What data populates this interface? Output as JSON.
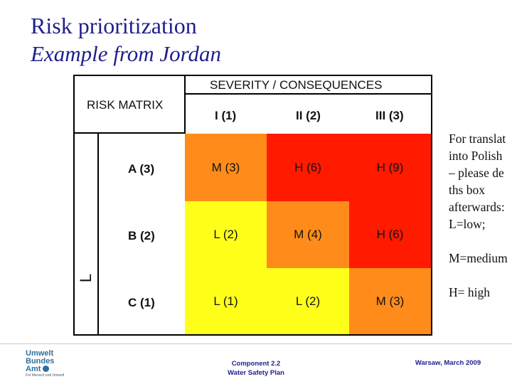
{
  "slide": {
    "title": "Risk prioritization",
    "subtitle": "Example from Jordan"
  },
  "matrix": {
    "corner_label": "RISK MATRIX",
    "severity_header": "SEVERITY / CONSEQUENCES",
    "columns": [
      "I (1)",
      "II (2)",
      "III (3)"
    ],
    "rows": [
      {
        "label": "A (3)",
        "cells": [
          "M (3)",
          "H (6)",
          "H (9)"
        ]
      },
      {
        "label": "B (2)",
        "cells": [
          "L (2)",
          "M (4)",
          "H (6)"
        ]
      },
      {
        "label": "C (1)",
        "cells": [
          "L (1)",
          "L (2)",
          "M (3)"
        ]
      }
    ],
    "likelihood_glyph": "L",
    "colors": {
      "H": "#ff1a00",
      "M": "#ff8c1a",
      "L": "#ffff1a"
    },
    "cell_levels": [
      [
        "M",
        "H",
        "H"
      ],
      [
        "L",
        "M",
        "H"
      ],
      [
        "L",
        "L",
        "M"
      ]
    ]
  },
  "side_note": {
    "lines": [
      "For translat",
      "into Polish",
      "– please de",
      "ths box",
      "afterwards:",
      "L=low;",
      "",
      "M=medium",
      "",
      "H= high"
    ]
  },
  "footer": {
    "logo_lines": [
      "Umwelt",
      "Bundes",
      "Amt"
    ],
    "logo_tagline": "Für Mensch und Umwelt",
    "center_line1": "Component 2.2",
    "center_line2": "Water Safety Plan",
    "right": "Warsaw, March 2009"
  }
}
